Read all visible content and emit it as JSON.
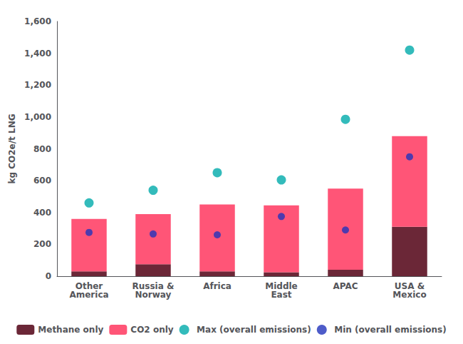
{
  "chart_data": {
    "type": "bar",
    "stacked": true,
    "categories": [
      "Other\nAmerica",
      "Russia &\nNorway",
      "Africa",
      "Middle\nEast",
      "APAC",
      "USA &\nMexico"
    ],
    "ylabel": "kg CO2e/t LNG",
    "ylim": [
      0,
      1600
    ],
    "yticks": [
      0,
      200,
      400,
      600,
      800,
      1000,
      1200,
      1400,
      1600
    ],
    "grid": false,
    "legend": "bottom",
    "series": [
      {
        "name": "Methane only",
        "type": "bar",
        "color": "#6B2737",
        "values": [
          30,
          75,
          30,
          25,
          40,
          310
        ]
      },
      {
        "name": "CO2 only",
        "type": "bar",
        "color": "#FF5577",
        "values": [
          330,
          315,
          420,
          420,
          510,
          570
        ]
      },
      {
        "name": "Max (overall emissions)",
        "type": "scatter",
        "color": "#00AAAA",
        "marker": "circle",
        "values": [
          460,
          540,
          650,
          605,
          985,
          1420
        ]
      },
      {
        "name": "Min (overall emissions)",
        "type": "scatter",
        "color": "#2233BB",
        "marker": "circle",
        "values": [
          275,
          265,
          260,
          375,
          290,
          750
        ]
      }
    ]
  }
}
